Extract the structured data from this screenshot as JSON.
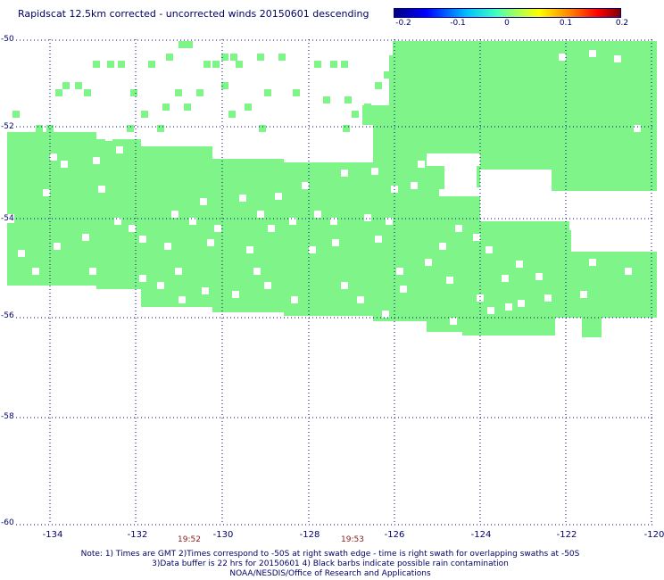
{
  "title": "Rapidscat 12.5km corrected - uncorrected winds 20150601 descending",
  "colorbar": {
    "ticks": [
      "-0.2",
      "-0.1",
      "0",
      "0.1",
      "0.2"
    ],
    "colors": [
      "#00007f",
      "#0000ff",
      "#00bfff",
      "#7fff7f",
      "#ffff00",
      "#ff7f00",
      "#7f0000"
    ]
  },
  "fill_color": "#7ff589",
  "grid_color": "#000080",
  "longitude_labels": [
    "-134",
    "-132",
    "-130",
    "-128",
    "-126",
    "-124",
    "-122",
    "-120"
  ],
  "latitude_labels": [
    "-50",
    "-52",
    "-54",
    "-56",
    "-58",
    "-60"
  ],
  "time_labels": [
    "19:52",
    "19:53"
  ],
  "notes": [
    "Note: 1) Times are GMT 2)Times correspond to -50S at right swath edge - time is right swath for overlapping swaths at -50S",
    "3)Data buffer is 22 hrs for 20150601 4) Black barbs indicate possible rain contamination",
    "NOAA/NESDIS/Office of Research and Applications"
  ]
}
